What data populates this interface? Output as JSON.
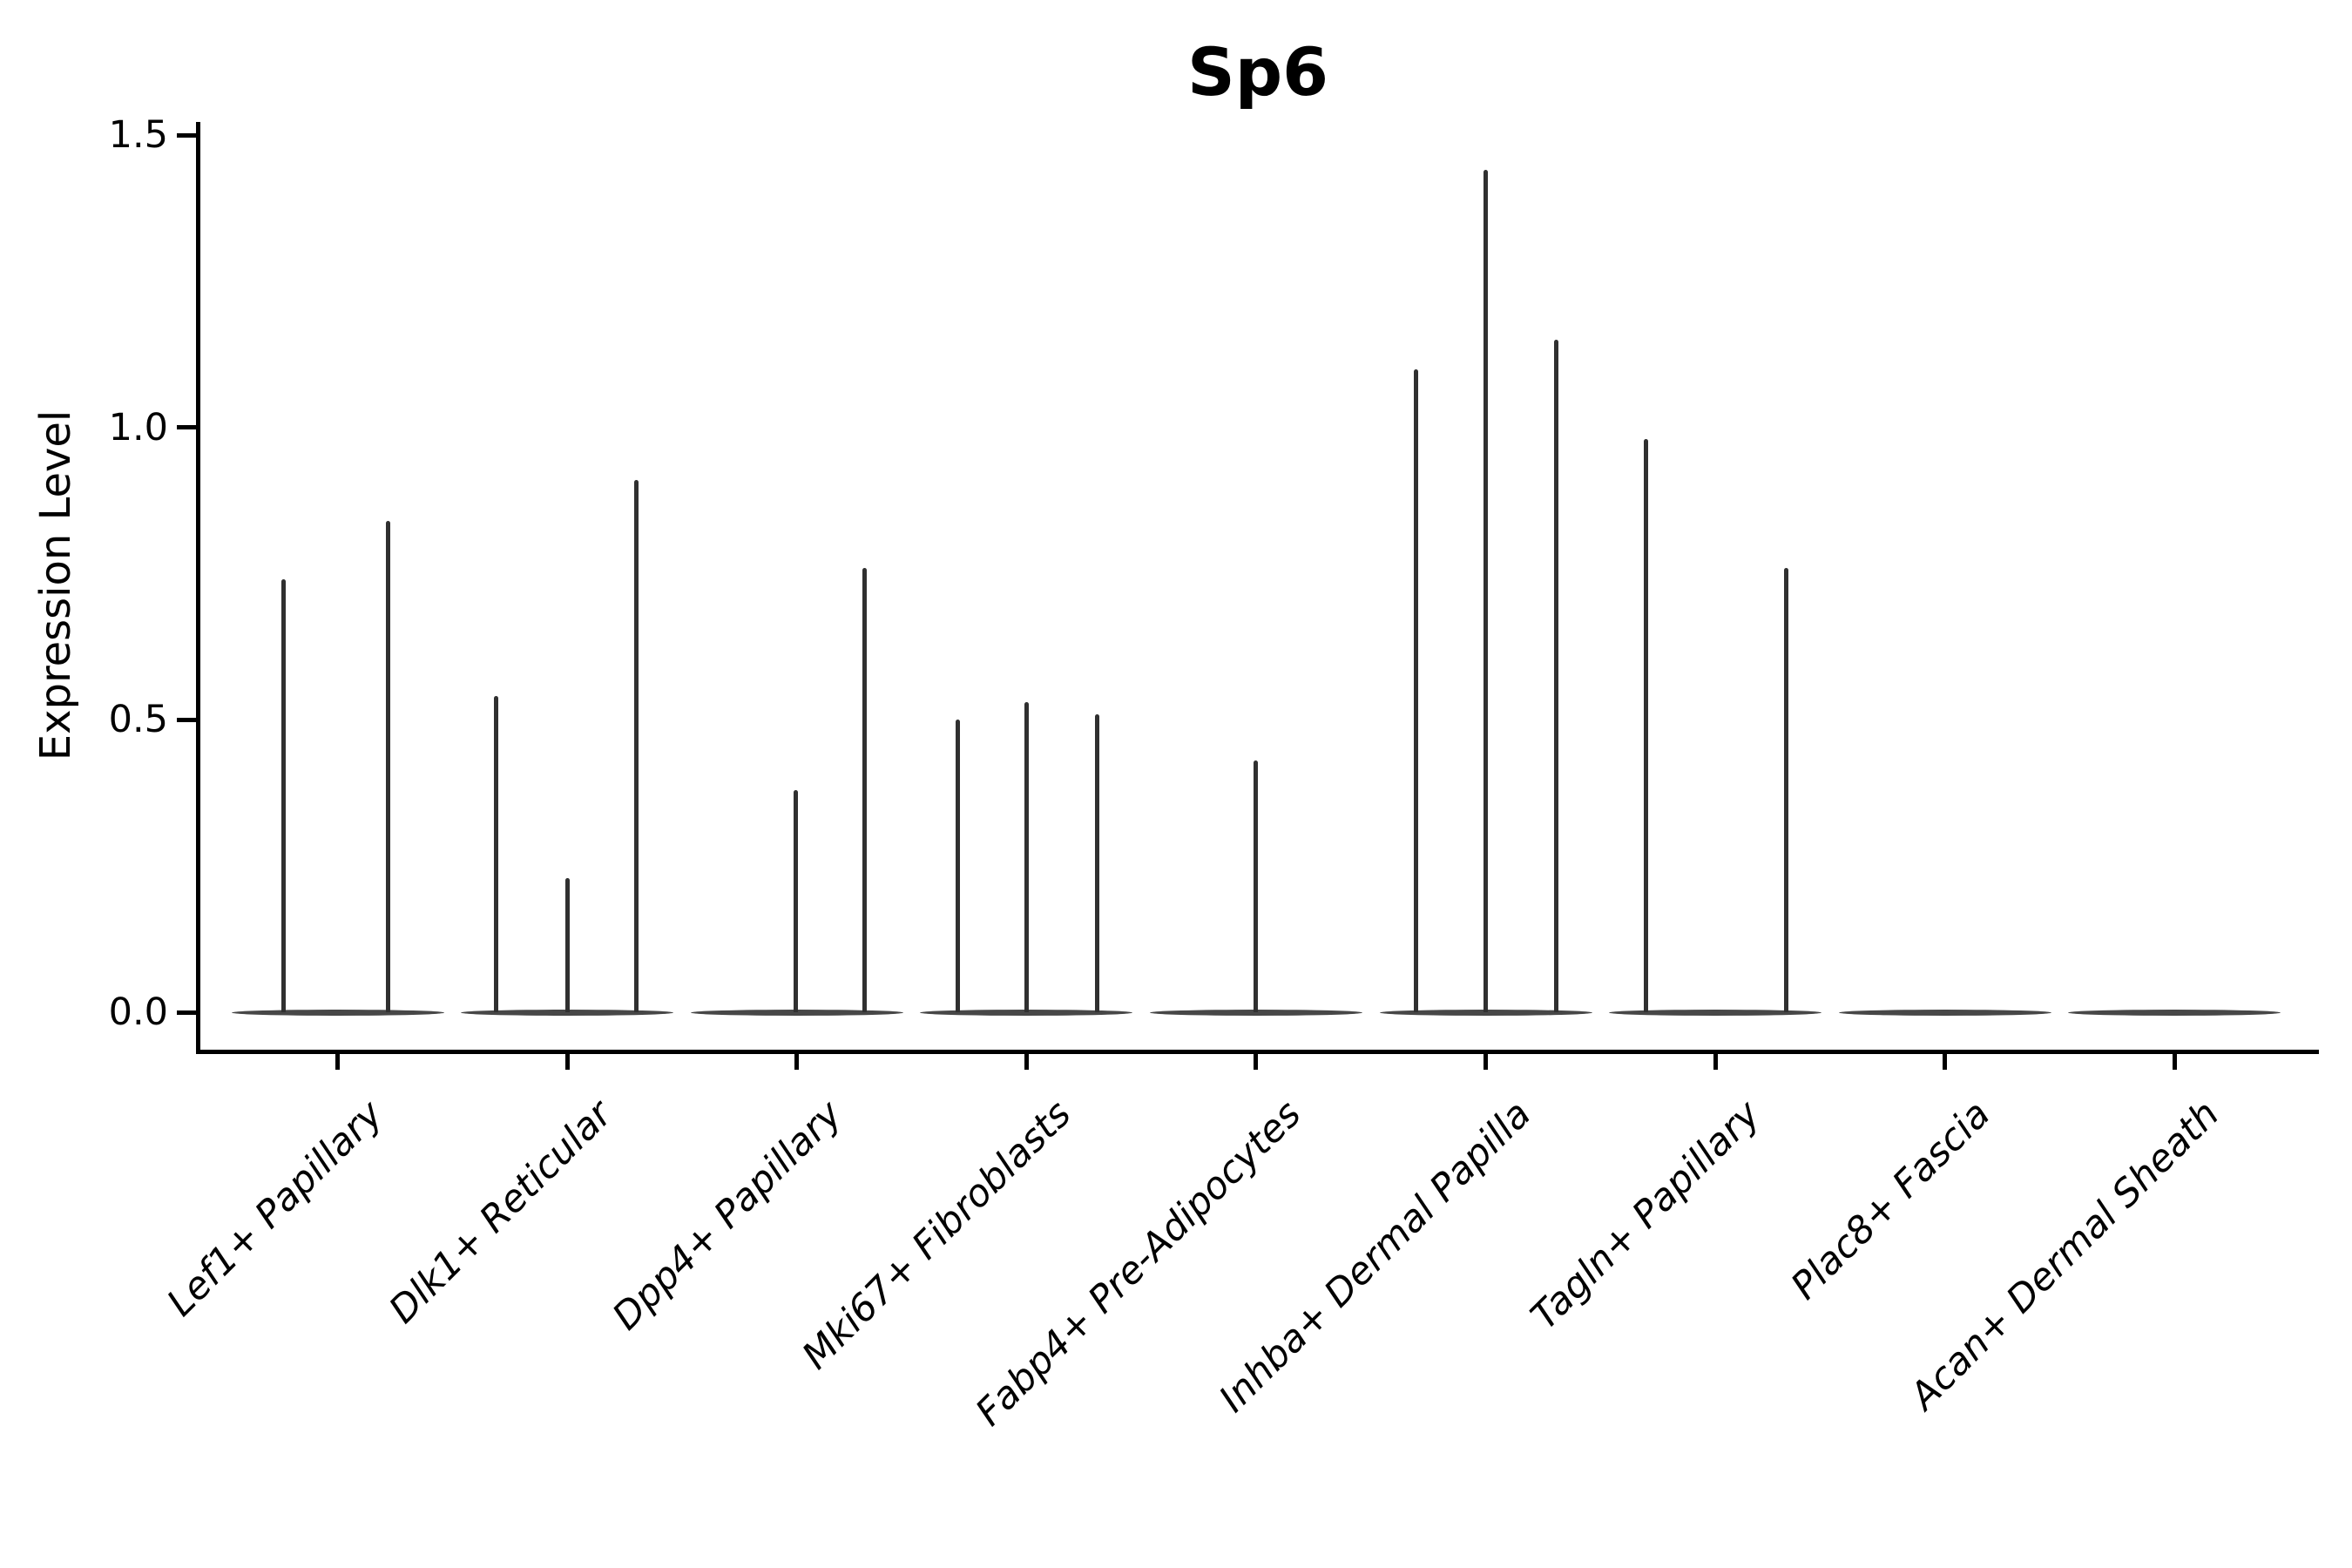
{
  "colors": {
    "background": "#ffffff",
    "axis": "#000000",
    "spike": "#303030",
    "violin_body": "#474747"
  },
  "chart_data": {
    "type": "violin",
    "title": "Sp6",
    "xlabel": "",
    "ylabel": "Expression Level",
    "ytick_labels": [
      "0.0",
      "0.5",
      "1.0",
      "1.5"
    ],
    "ytick_values": [
      0.0,
      0.5,
      1.0,
      1.5
    ],
    "ylim": [
      0,
      1.5
    ],
    "grid": false,
    "legend": "none",
    "categories": [
      "Lef1+ Papillary",
      "Dlk1+ Reticular",
      "Dpp4+ Papillary",
      "Mki67+ Fibroblasts",
      "Fabp4+ Pre-Adipocytes",
      "Inhba+ Dermal Papilla",
      "Tagln+ Papillary",
      "Plac8+ Fascia",
      "Acan+ Dermal Sheath"
    ],
    "description": "Violin plot of Sp6 expression; every cluster has a dominant flat mass of zero-expression cells plus thin density spikes at the expression values of the few expressing cells.",
    "violins": [
      {
        "category": "Lef1+ Papillary",
        "zero_mass": true,
        "spikes": [
          {
            "offset": -62,
            "value": 0.74
          },
          {
            "offset": 58,
            "value": 0.84
          }
        ]
      },
      {
        "category": "Dlk1+ Reticular",
        "zero_mass": true,
        "spikes": [
          {
            "offset": -82,
            "value": 0.54
          },
          {
            "offset": 0,
            "value": 0.23
          },
          {
            "offset": 79,
            "value": 0.91
          }
        ]
      },
      {
        "category": "Dpp4+ Papillary",
        "zero_mass": true,
        "spikes": [
          {
            "offset": -1,
            "value": 0.38
          },
          {
            "offset": 78,
            "value": 0.76
          }
        ]
      },
      {
        "category": "Mki67+ Fibroblasts",
        "zero_mass": true,
        "spikes": [
          {
            "offset": -79,
            "value": 0.5
          },
          {
            "offset": 0,
            "value": 0.53
          },
          {
            "offset": 81,
            "value": 0.51
          }
        ]
      },
      {
        "category": "Fabp4+ Pre-Adipocytes",
        "zero_mass": true,
        "spikes": [
          {
            "offset": 0,
            "value": 0.43
          }
        ]
      },
      {
        "category": "Inhba+ Dermal Papilla",
        "zero_mass": true,
        "spikes": [
          {
            "offset": -80,
            "value": 1.1
          },
          {
            "offset": 0,
            "value": 1.44
          },
          {
            "offset": 81,
            "value": 1.15
          }
        ]
      },
      {
        "category": "Tagln+ Papillary",
        "zero_mass": true,
        "spikes": [
          {
            "offset": -80,
            "value": 0.98
          },
          {
            "offset": 81,
            "value": 0.76
          }
        ]
      },
      {
        "category": "Plac8+ Fascia",
        "zero_mass": true,
        "spikes": []
      },
      {
        "category": "Acan+ Dermal Sheath",
        "zero_mass": true,
        "spikes": []
      }
    ]
  }
}
